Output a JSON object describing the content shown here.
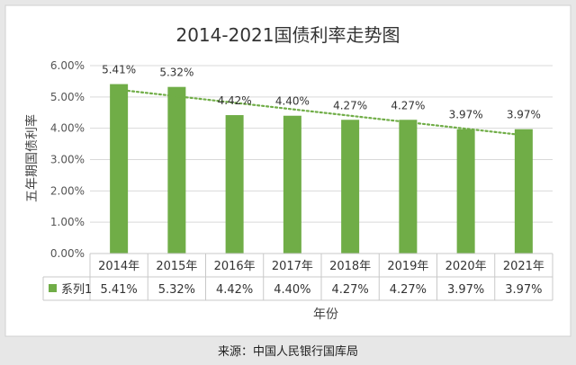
{
  "chart_data": {
    "type": "bar",
    "title": "2014-2021国债利率走势图",
    "ylabel": "五年期国债利率",
    "xlabel": "年份",
    "categories": [
      "2014年",
      "2015年",
      "2016年",
      "2017年",
      "2018年",
      "2019年",
      "2020年",
      "2021年"
    ],
    "series": [
      {
        "name": "系列1",
        "values": [
          5.41,
          5.32,
          4.42,
          4.4,
          4.27,
          4.27,
          3.97,
          3.97
        ],
        "labels": [
          "5.41%",
          "5.32%",
          "4.42%",
          "4.40%",
          "4.27%",
          "4.27%",
          "3.97%",
          "3.97%"
        ],
        "color": "#70ad47"
      }
    ],
    "ylim": [
      0,
      6
    ],
    "yticks": [
      "0.00%",
      "1.00%",
      "2.00%",
      "3.00%",
      "4.00%",
      "5.00%",
      "6.00%"
    ],
    "trendline": {
      "type": "linear",
      "style": "dotted",
      "color": "#70ad47"
    },
    "grid": true,
    "data_table": true
  },
  "source": "来源：中国人民银行国库局"
}
